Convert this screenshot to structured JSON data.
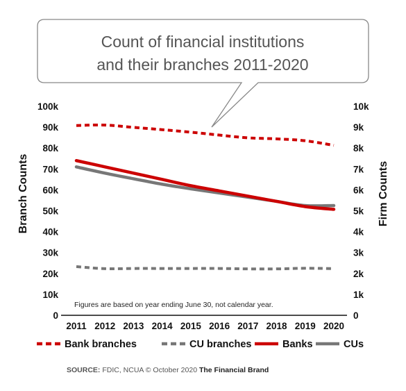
{
  "chart_data": {
    "type": "line",
    "title_lines": [
      "Count of financial institutions",
      "and their branches 2011-2020"
    ],
    "x": [
      "2011",
      "2012",
      "2013",
      "2014",
      "2015",
      "2016",
      "2017",
      "2018",
      "2019",
      "2020"
    ],
    "ylabel": "Branch Counts",
    "y2label": "Firm Counts",
    "ylim": [
      0,
      100000
    ],
    "y2lim": [
      0,
      10000
    ],
    "yticks": [
      "0",
      "10k",
      "20k",
      "30k",
      "40k",
      "50k",
      "60k",
      "70k",
      "80k",
      "90k",
      "100k"
    ],
    "y2ticks": [
      "0",
      "1k",
      "2k",
      "3k",
      "4k",
      "5k",
      "6k",
      "7k",
      "8k",
      "9k",
      "10k"
    ],
    "series": [
      {
        "name": "Bank branches",
        "axis": "left",
        "style": "dashed",
        "color": "#cc0000",
        "values": [
          90800,
          91000,
          89900,
          88800,
          87600,
          86200,
          84900,
          84400,
          83500,
          81300
        ]
      },
      {
        "name": "CU branches",
        "axis": "left",
        "style": "dashed",
        "color": "#777777",
        "values": [
          23300,
          22300,
          22400,
          22400,
          22400,
          22400,
          22200,
          22200,
          22500,
          22300
        ]
      },
      {
        "name": "Banks",
        "axis": "right",
        "style": "solid",
        "color": "#cc0000",
        "values": [
          7400,
          7100,
          6800,
          6500,
          6200,
          5950,
          5700,
          5450,
          5200,
          5070
        ]
      },
      {
        "name": "CUs",
        "axis": "right",
        "style": "solid",
        "color": "#777777",
        "values": [
          7100,
          6800,
          6530,
          6270,
          6050,
          5850,
          5650,
          5450,
          5250,
          5250
        ]
      }
    ],
    "annotation": "Figures are based on year ending June 30, not calendar year.",
    "legend_position": "bottom",
    "grid": false
  },
  "source": {
    "label": "SOURCE:",
    "text": "FDIC, NCUA © October 2020",
    "brand": "The Financial Brand"
  }
}
